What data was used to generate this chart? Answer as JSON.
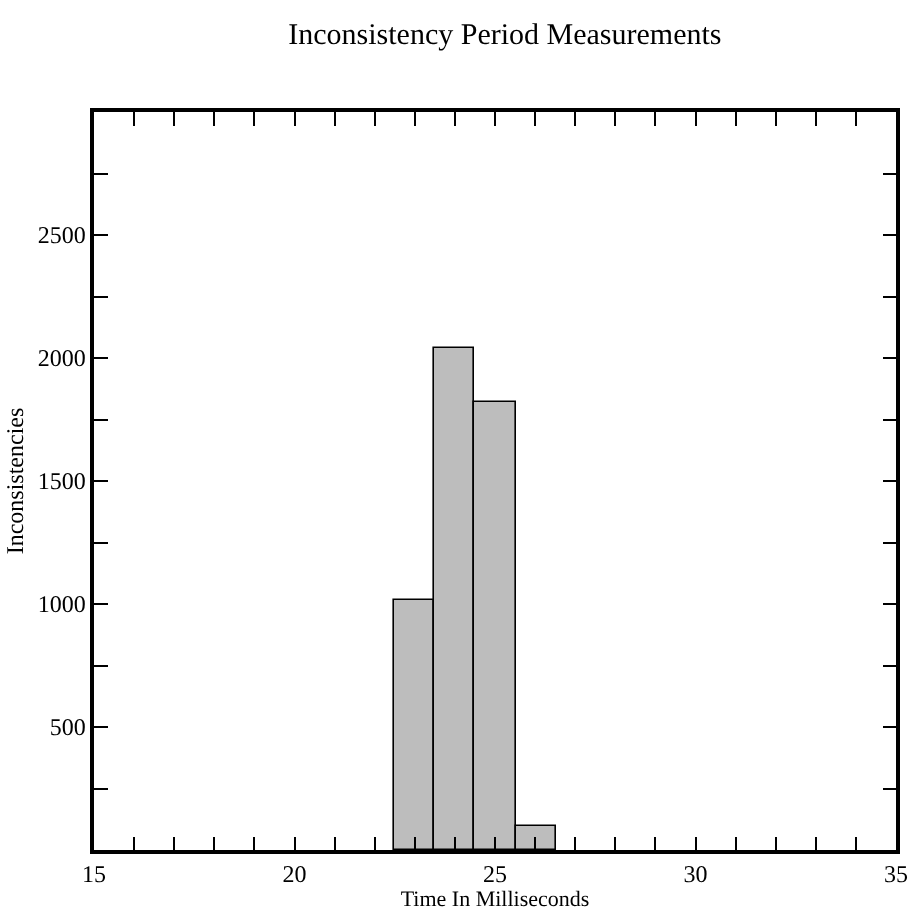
{
  "chart_data": {
    "type": "histogram",
    "title": "Inconsistency Period Measurements",
    "xlabel": "Time In Milliseconds",
    "ylabel": "Inconsistencies",
    "bins": [
      22.5,
      23.5,
      24.5,
      25.5,
      26.5
    ],
    "values": [
      1020,
      2040,
      1820,
      100
    ],
    "color": "#bdbdbd",
    "xlim": [
      15,
      35
    ],
    "xticks": [
      15,
      {
        "value": 16,
        "label": null
      },
      {
        "value": 17,
        "label": null
      },
      {
        "value": 18,
        "label": null
      },
      {
        "value": 19,
        "label": null
      },
      20,
      {
        "value": 21,
        "label": null
      },
      {
        "value": 22,
        "label": null
      },
      {
        "value": 23,
        "label": null
      },
      {
        "value": 24,
        "label": null
      },
      25,
      {
        "value": 26,
        "label": null
      },
      {
        "value": 27,
        "label": null
      },
      {
        "value": 28,
        "label": null
      },
      {
        "value": 29,
        "label": null
      },
      30,
      {
        "value": 31,
        "label": null
      },
      {
        "value": 32,
        "label": null
      },
      {
        "value": 33,
        "label": null
      },
      {
        "value": 34,
        "label": null
      },
      35
    ],
    "ylim": [
      0,
      3000
    ],
    "yticks": [
      {
        "value": 250,
        "label": null
      },
      500,
      {
        "value": 750,
        "label": null
      },
      1000,
      {
        "value": 1250,
        "label": null
      },
      1500,
      {
        "value": 1750,
        "label": null
      },
      2000,
      {
        "value": 2250,
        "label": null
      },
      2500,
      {
        "value": 2750,
        "label": null
      }
    ]
  }
}
